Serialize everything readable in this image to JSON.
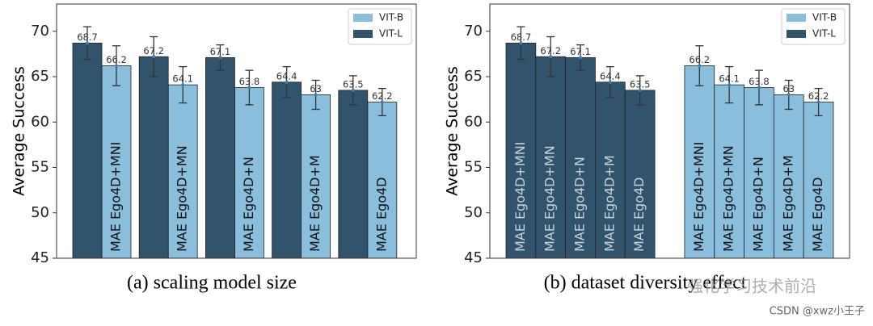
{
  "chart_data": [
    {
      "type": "grouped-bar",
      "caption": "(a) scaling model size",
      "ylabel": "Average Success",
      "categories": [
        "MAE Ego4D+MNI",
        "MAE Ego4D+MN",
        "MAE Ego4D+N",
        "MAE Ego4D+M",
        "MAE Ego4D"
      ],
      "series": [
        {
          "name": "VIT-B",
          "color": "#89bedc",
          "values": [
            66.2,
            64.1,
            63.8,
            63.0,
            62.2
          ],
          "errors": [
            2.2,
            2.0,
            1.9,
            1.6,
            1.5
          ]
        },
        {
          "name": "VIT-L",
          "color": "#31536c",
          "values": [
            68.7,
            67.2,
            67.1,
            64.4,
            63.5
          ],
          "errors": [
            1.8,
            2.2,
            1.4,
            1.7,
            1.6
          ]
        }
      ],
      "ylim": [
        45,
        73
      ],
      "yticks": [
        45,
        50,
        55,
        60,
        65,
        70
      ],
      "legend": "upper right"
    },
    {
      "type": "bar",
      "caption": "(b) dataset diversity effect",
      "ylabel": "Average Success",
      "categories": [
        "MAE Ego4D+MNI",
        "MAE Ego4D+MN",
        "MAE Ego4D+N",
        "MAE Ego4D+M",
        "MAE Ego4D",
        null,
        "MAE Ego4D+MNI",
        "MAE Ego4D+MN",
        "MAE Ego4D+N",
        "MAE Ego4D+M",
        "MAE Ego4D"
      ],
      "series": [
        {
          "name": "VIT-B",
          "color": "#89bedc",
          "values": [
            null,
            null,
            null,
            null,
            null,
            null,
            66.2,
            64.1,
            63.8,
            63.0,
            62.2
          ],
          "errors": [
            null,
            null,
            null,
            null,
            null,
            null,
            2.2,
            2.0,
            1.9,
            1.6,
            1.5
          ]
        },
        {
          "name": "VIT-L",
          "color": "#31536c",
          "values": [
            68.7,
            67.2,
            67.1,
            64.4,
            63.5,
            null,
            null,
            null,
            null,
            null,
            null
          ],
          "errors": [
            1.8,
            2.2,
            1.4,
            1.7,
            1.6,
            null,
            null,
            null,
            null,
            null,
            null
          ]
        }
      ],
      "ylim": [
        45,
        73
      ],
      "yticks": [
        45,
        50,
        55,
        60,
        65,
        70
      ],
      "legend": "upper right"
    }
  ],
  "watermark": {
    "text": "强化学习技术前沿",
    "credit": "CSDN @xwz小王子"
  }
}
